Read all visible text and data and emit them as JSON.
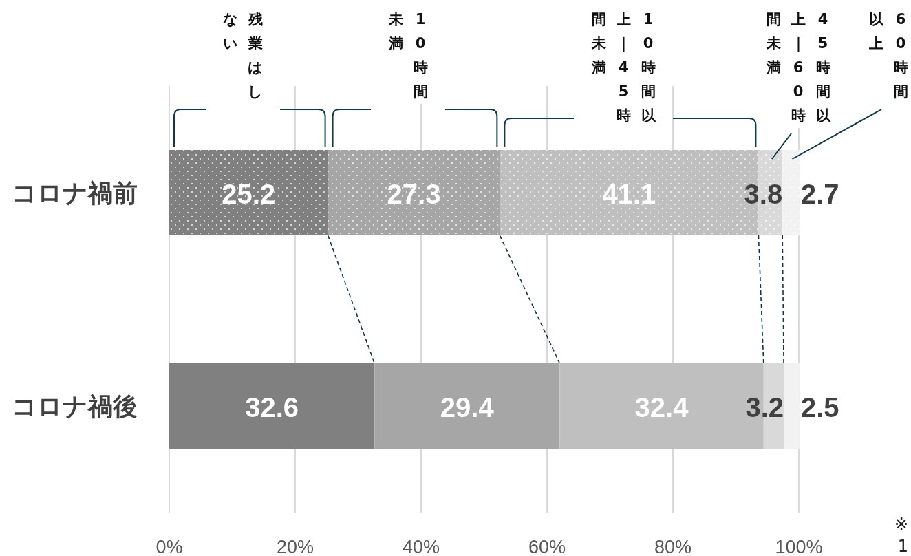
{
  "chart_data": {
    "type": "bar",
    "orientation": "horizontal",
    "stacked": true,
    "categories": [
      "コロナ禍前",
      "コロナ禍後"
    ],
    "series": [
      {
        "name": "残業はしない",
        "color": "#808080",
        "values": [
          25.2,
          32.6
        ]
      },
      {
        "name": "10時間未満",
        "color": "#a6a6a6",
        "values": [
          27.3,
          29.4
        ]
      },
      {
        "name": "10時間以上｜45時間未満",
        "color": "#bfbfbf",
        "values": [
          41.1,
          32.4
        ]
      },
      {
        "name": "45時間以上｜60時間未満",
        "color": "#d9d9d9",
        "values": [
          3.8,
          3.2
        ]
      },
      {
        "name": "60時間以上",
        "color": "#f2f2f2",
        "values": [
          2.7,
          2.5
        ]
      }
    ],
    "xlim": [
      0,
      100
    ],
    "xticks": [
      {
        "value": 0,
        "label": "0%"
      },
      {
        "value": 20,
        "label": "20%"
      },
      {
        "value": 40,
        "label": "40%"
      },
      {
        "value": 60,
        "label": "60%"
      },
      {
        "value": 80,
        "label": "80%"
      },
      {
        "value": 100,
        "label": "100%"
      }
    ],
    "grid": "x",
    "data_labels": true,
    "annotations": [
      "※",
      "1"
    ]
  }
}
